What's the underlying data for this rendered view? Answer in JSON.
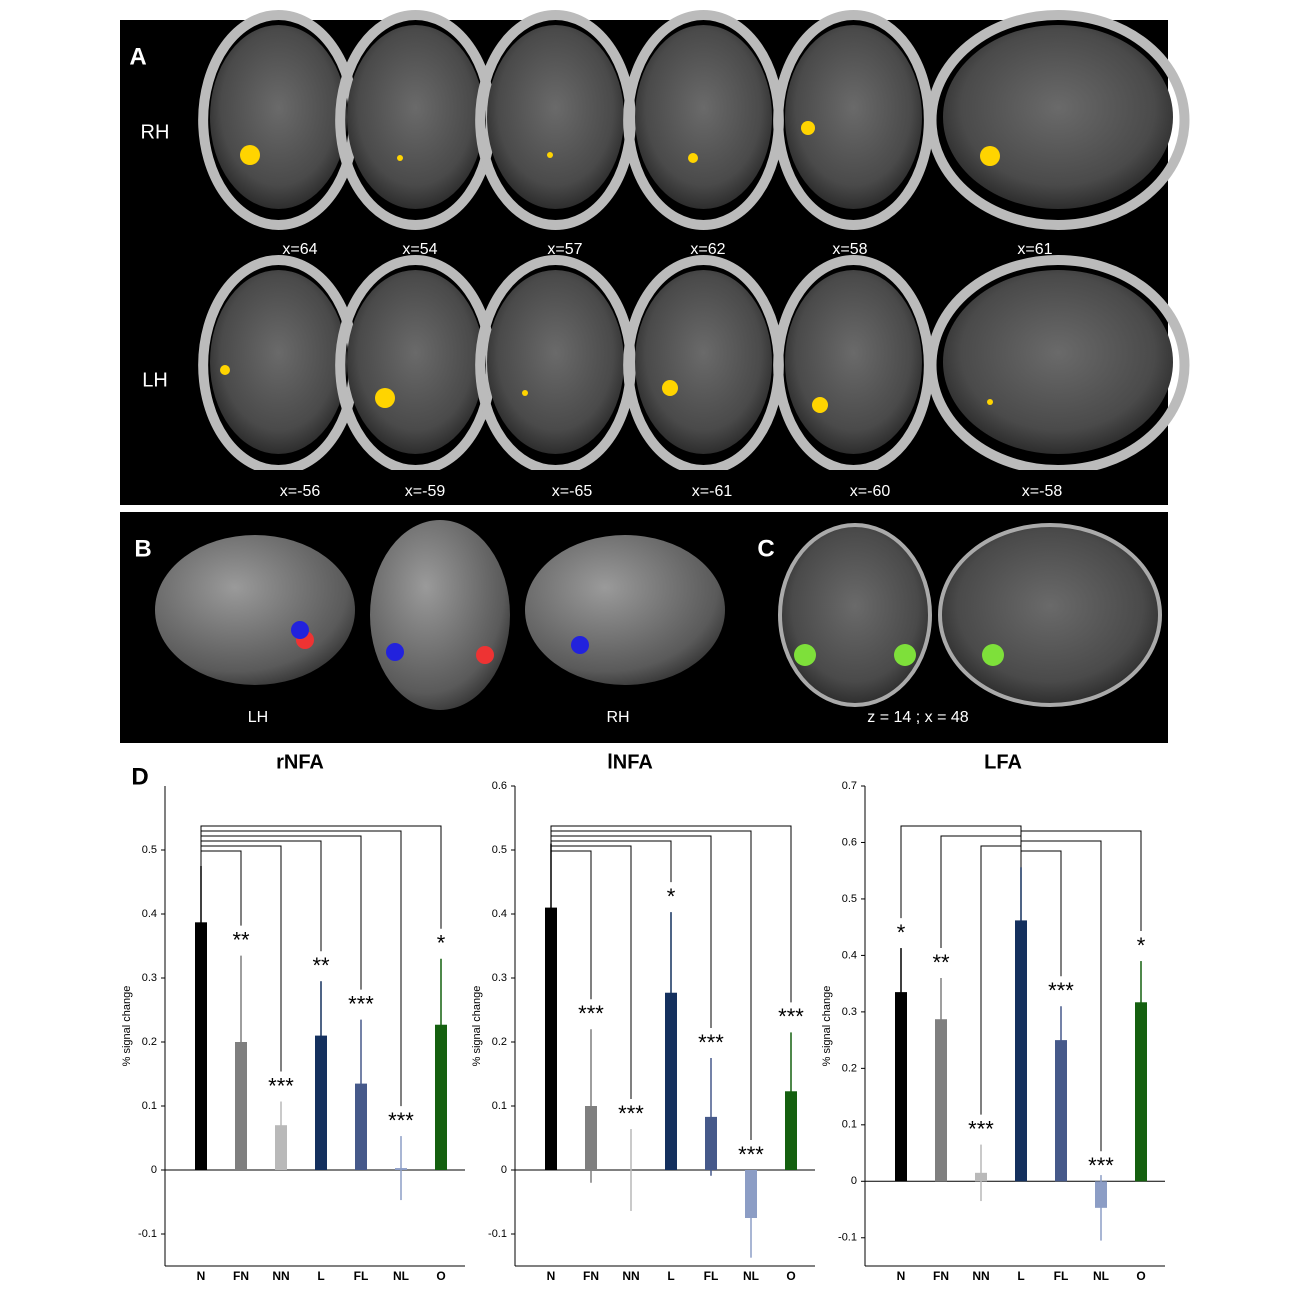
{
  "panels": {
    "A": {
      "label": "A",
      "rows": [
        {
          "label": "RH",
          "slices": [
            "x=64",
            "x=54",
            "x=57",
            "x=62",
            "x=58",
            "x=61"
          ]
        },
        {
          "label": "LH",
          "slices": [
            "x=-56",
            "x=-59",
            "x=-65",
            "x=-61",
            "x=-60",
            "x=-58"
          ]
        }
      ]
    },
    "B": {
      "label": "B",
      "hemispheres": [
        "LH",
        "RH"
      ]
    },
    "C": {
      "label": "C",
      "caption": "z = 14 ; x = 48"
    },
    "D": {
      "label": "D"
    }
  },
  "chart_data": [
    {
      "type": "bar",
      "title": "rNFA",
      "ylabel": "% signal change",
      "categories": [
        "N",
        "FN",
        "NN",
        "L",
        "FL",
        "NL",
        "O"
      ],
      "values": [
        0.387,
        0.2,
        0.07,
        0.21,
        0.135,
        0.003,
        0.227
      ],
      "errors": [
        0.088,
        0.135,
        0.037,
        0.085,
        0.1,
        0.05,
        0.103
      ],
      "significance": [
        null,
        "**",
        "***",
        "**",
        "***",
        "***",
        "*"
      ],
      "colors": [
        "#000000",
        "#7f7f7f",
        "#b9b9b9",
        "#14305e",
        "#46598a",
        "#8c9dc5",
        "#14600f"
      ],
      "ylim": [
        -0.15,
        0.6
      ],
      "yticks": [
        -0.1,
        0,
        0.1,
        0.2,
        0.3,
        0.4,
        0.5
      ]
    },
    {
      "type": "bar",
      "title": "lNFA",
      "ylabel": "% signal change",
      "categories": [
        "N",
        "FN",
        "NN",
        "L",
        "FL",
        "NL",
        "O"
      ],
      "values": [
        0.41,
        0.1,
        0.0,
        0.277,
        0.083,
        -0.075,
        0.123
      ],
      "errors": [
        0.1,
        0.12,
        0.064,
        0.126,
        0.092,
        0.062,
        0.092
      ],
      "significance": [
        null,
        "***",
        "***",
        "*",
        "***",
        "***",
        "***"
      ],
      "colors": [
        "#000000",
        "#7f7f7f",
        "#b9b9b9",
        "#14305e",
        "#46598a",
        "#8c9dc5",
        "#14600f"
      ],
      "ylim": [
        -0.15,
        0.6
      ],
      "yticks": [
        -0.1,
        0,
        0.1,
        0.2,
        0.3,
        0.4,
        0.5,
        0.6
      ]
    },
    {
      "type": "bar",
      "title": "LFA",
      "ylabel": "% signal change",
      "categories": [
        "N",
        "FN",
        "NN",
        "L",
        "FL",
        "NL",
        "O"
      ],
      "values": [
        0.335,
        0.287,
        0.015,
        0.462,
        0.25,
        -0.047,
        0.317
      ],
      "errors": [
        0.078,
        0.073,
        0.05,
        0.094,
        0.06,
        0.058,
        0.073
      ],
      "significance": [
        "*",
        "**",
        "***",
        null,
        "***",
        "***",
        "*"
      ],
      "colors": [
        "#000000",
        "#7f7f7f",
        "#b9b9b9",
        "#14305e",
        "#46598a",
        "#8c9dc5",
        "#14600f"
      ],
      "ylim": [
        -0.15,
        0.7
      ],
      "yticks": [
        -0.1,
        0,
        0.1,
        0.2,
        0.3,
        0.4,
        0.5,
        0.6,
        0.7
      ]
    }
  ]
}
